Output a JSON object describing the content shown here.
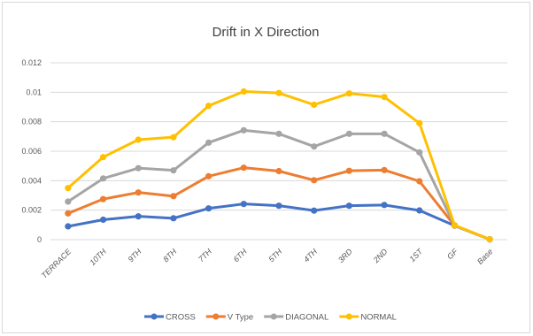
{
  "chart_data": {
    "type": "line",
    "title": "Drift in X Direction",
    "xlabel": "",
    "ylabel": "",
    "categories": [
      "TERRACE",
      "10TH",
      "9TH",
      "8TH",
      "7TH",
      "6TH",
      "5TH",
      "4TH",
      "3RD",
      "2ND",
      "1ST",
      "GF",
      "Base"
    ],
    "ylim": [
      0,
      0.012
    ],
    "yticks": [
      0,
      0.002,
      0.004,
      0.006,
      0.008,
      0.01,
      0.012
    ],
    "ytick_labels": [
      "0",
      "0.002",
      "0.004",
      "0.006",
      "0.008",
      "0.01",
      "0.012"
    ],
    "grid": true,
    "legend_position": "bottom",
    "series": [
      {
        "name": "CROSS",
        "color": "#4472c4",
        "values": [
          0.0009,
          0.00135,
          0.00158,
          0.00145,
          0.00212,
          0.00242,
          0.0023,
          0.00197,
          0.0023,
          0.00235,
          0.00198,
          0.00095,
          2e-05
        ]
      },
      {
        "name": "V Type",
        "color": "#ed7d31",
        "values": [
          0.00178,
          0.00275,
          0.0032,
          0.00295,
          0.0043,
          0.00488,
          0.00465,
          0.00403,
          0.00467,
          0.00472,
          0.00396,
          0.00095,
          2e-05
        ]
      },
      {
        "name": "DIAGONAL",
        "color": "#a5a5a5",
        "values": [
          0.00258,
          0.00415,
          0.00485,
          0.0047,
          0.00658,
          0.00742,
          0.00718,
          0.00632,
          0.00718,
          0.00718,
          0.00592,
          0.00095,
          2e-05
        ]
      },
      {
        "name": "NORMAL",
        "color": "#ffc000",
        "values": [
          0.0035,
          0.0056,
          0.00678,
          0.00695,
          0.00908,
          0.01005,
          0.00995,
          0.00915,
          0.00992,
          0.00968,
          0.0079,
          0.00098,
          2e-05
        ]
      }
    ]
  }
}
